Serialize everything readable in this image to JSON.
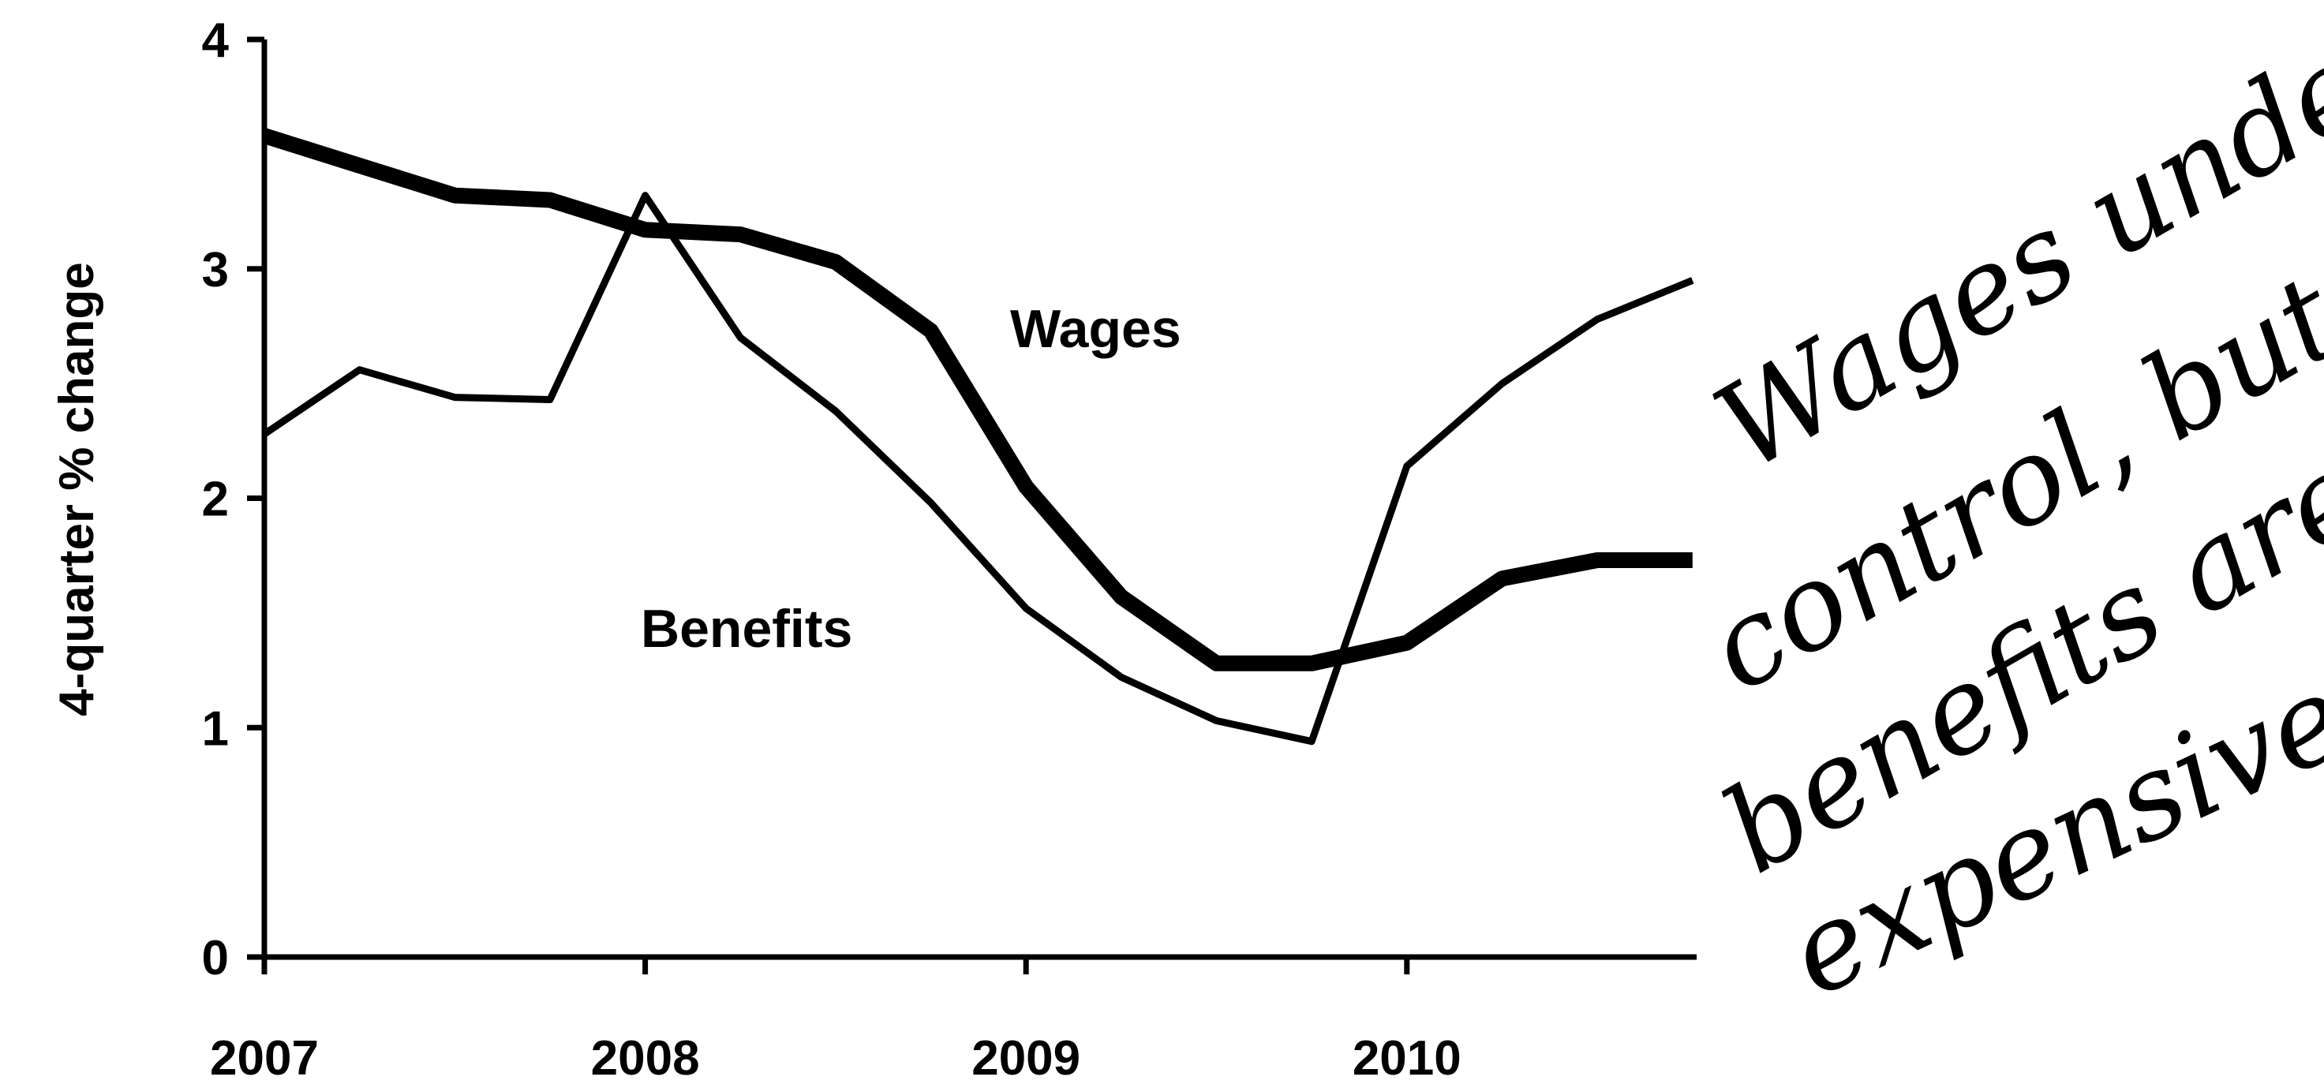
{
  "chart_data": {
    "type": "line",
    "title": "",
    "xlabel": "",
    "ylabel": "4-quarter % change",
    "x_ticks": [
      "2007",
      "2008",
      "2009",
      "2010"
    ],
    "y_ticks": [
      "0",
      "1",
      "2",
      "3",
      "4"
    ],
    "ylim": [
      0,
      4
    ],
    "xlim": [
      "2007Q1",
      "2010Q4"
    ],
    "x": [
      "2007Q1",
      "2007Q2",
      "2007Q3",
      "2007Q4",
      "2008Q1",
      "2008Q2",
      "2008Q3",
      "2008Q4",
      "2009Q1",
      "2009Q2",
      "2009Q3",
      "2009Q4",
      "2010Q1",
      "2010Q2",
      "2010Q3",
      "2010Q4"
    ],
    "grid": false,
    "series": [
      {
        "name": "Wages",
        "style": "thick",
        "values": [
          3.58,
          3.45,
          3.32,
          3.3,
          3.17,
          3.15,
          3.03,
          2.73,
          2.05,
          1.57,
          1.28,
          1.28,
          1.37,
          1.65,
          1.73,
          1.73
        ]
      },
      {
        "name": "Benefits",
        "style": "thin",
        "values": [
          2.28,
          2.56,
          2.44,
          2.43,
          3.32,
          2.7,
          2.38,
          1.98,
          1.52,
          1.22,
          1.03,
          0.94,
          2.14,
          2.5,
          2.78,
          2.95
        ]
      }
    ],
    "annotation": "Wages under control, but benefits are expensive."
  },
  "annotation_lines": [
    "Wages under",
    "control, but",
    "benefits are",
    "expensive ."
  ]
}
